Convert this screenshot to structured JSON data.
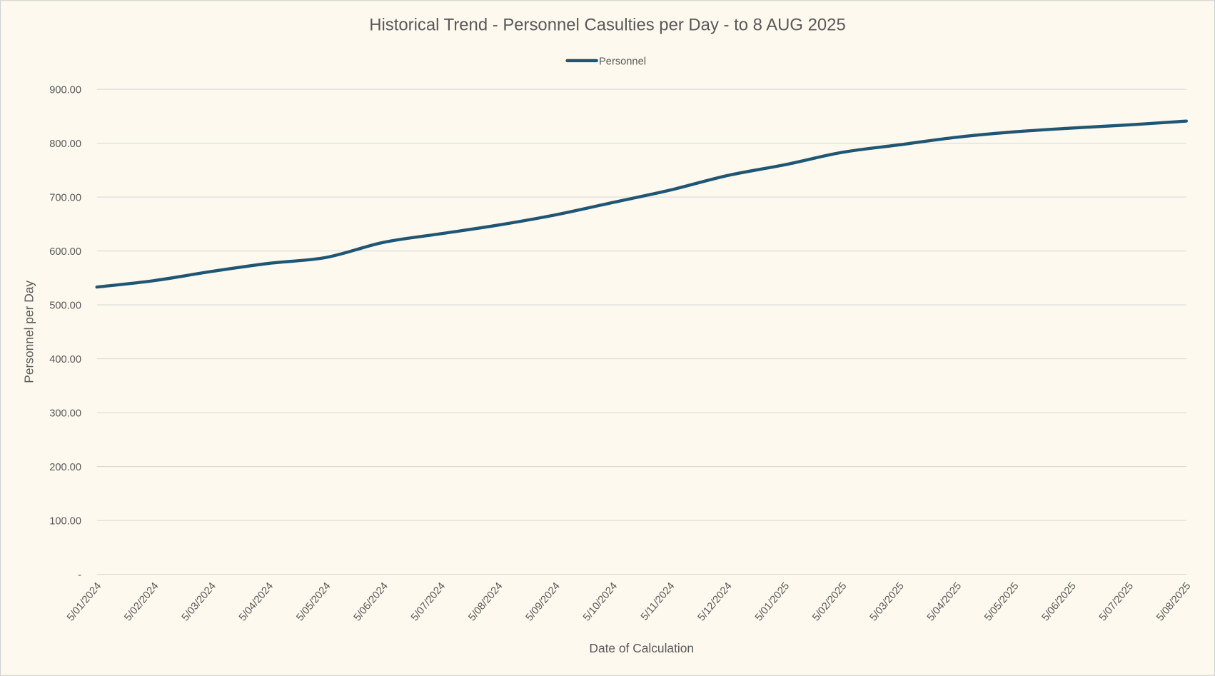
{
  "chart_data": {
    "type": "line",
    "title": "Historical Trend - Personnel Casulties per Day - to 8 AUG 2025",
    "xlabel": "Date of Calculation",
    "ylabel": "Personnel per Day",
    "ylim": [
      0,
      900
    ],
    "yticks": [
      "-",
      "100.00",
      "200.00",
      "300.00",
      "400.00",
      "500.00",
      "600.00",
      "700.00",
      "800.00",
      "900.00"
    ],
    "grid": true,
    "legend_position": "top",
    "categories": [
      "5/01/2024",
      "5/02/2024",
      "5/03/2024",
      "5/04/2024",
      "5/05/2024",
      "5/06/2024",
      "5/07/2024",
      "5/08/2024",
      "5/09/2024",
      "5/10/2024",
      "5/11/2024",
      "5/12/2024",
      "5/01/2025",
      "5/02/2025",
      "5/03/2025",
      "5/04/2025",
      "5/05/2025",
      "5/06/2025",
      "5/07/2025",
      "5/08/2025"
    ],
    "series": [
      {
        "name": "Personnel",
        "color": "#1f5673",
        "values": [
          533,
          545,
          562,
          577,
          588,
          616,
          632,
          648,
          667,
          690,
          713,
          740,
          760,
          783,
          797,
          811,
          821,
          828,
          834,
          841
        ]
      }
    ]
  }
}
